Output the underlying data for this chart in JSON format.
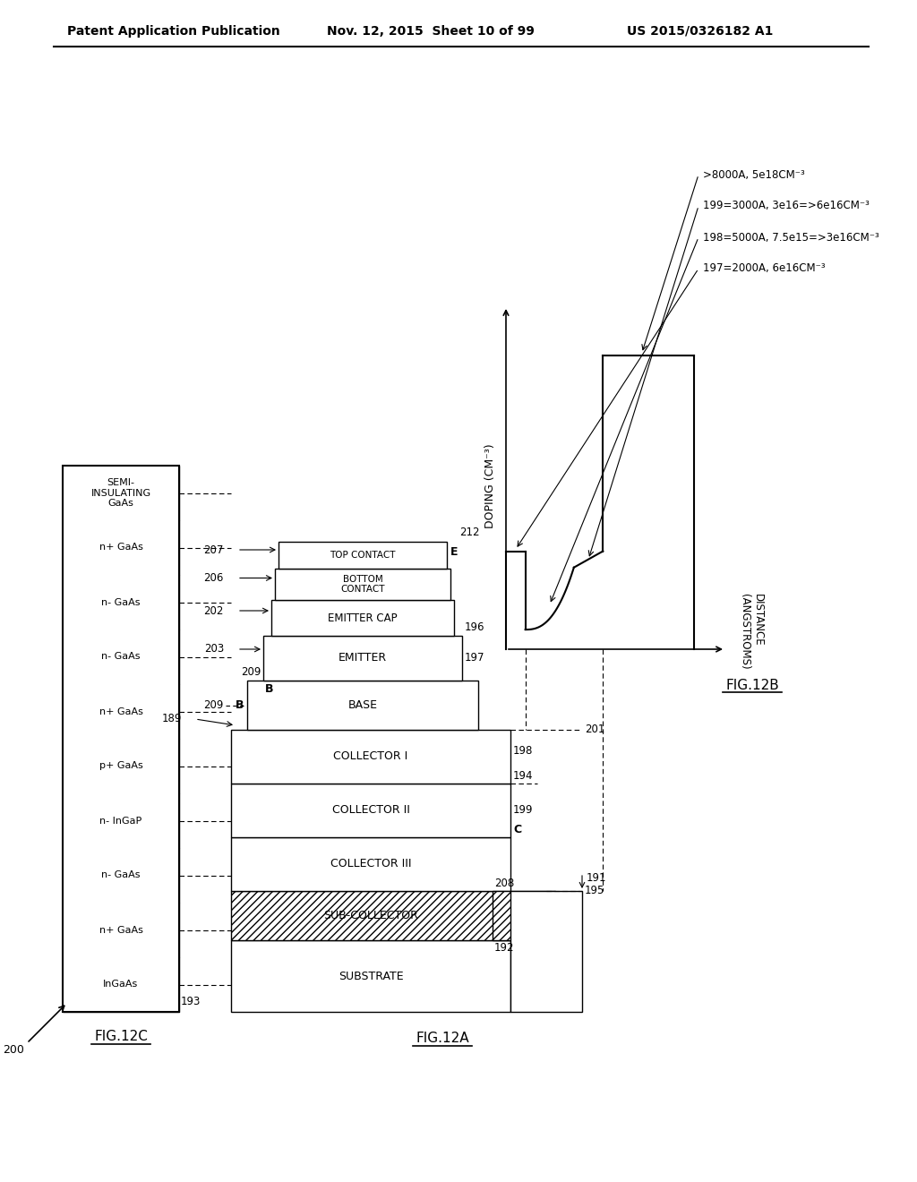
{
  "header_left": "Patent Application Publication",
  "header_center": "Nov. 12, 2015  Sheet 10 of 99",
  "header_right": "US 2015/0326182 A1",
  "fig12c_layers": [
    "InGaAs",
    "n+ GaAs",
    "n- GaAs",
    "n- InGaP",
    "p+ GaAs",
    "n+ GaAs",
    "n- GaAs",
    "n- GaAs",
    "n+ GaAs",
    "SEMI-\nINSULATING\nGaAs"
  ],
  "fig12b_annotations": [
    "197=2000A, 6e16CM⁻³",
    "198=5000A, 7.5e15=>3e16CM⁻³",
    "199=3000A, 3e16=>6e16CM⁻³",
    ">8000A, 5e18CM⁻³"
  ],
  "bg": "#ffffff"
}
